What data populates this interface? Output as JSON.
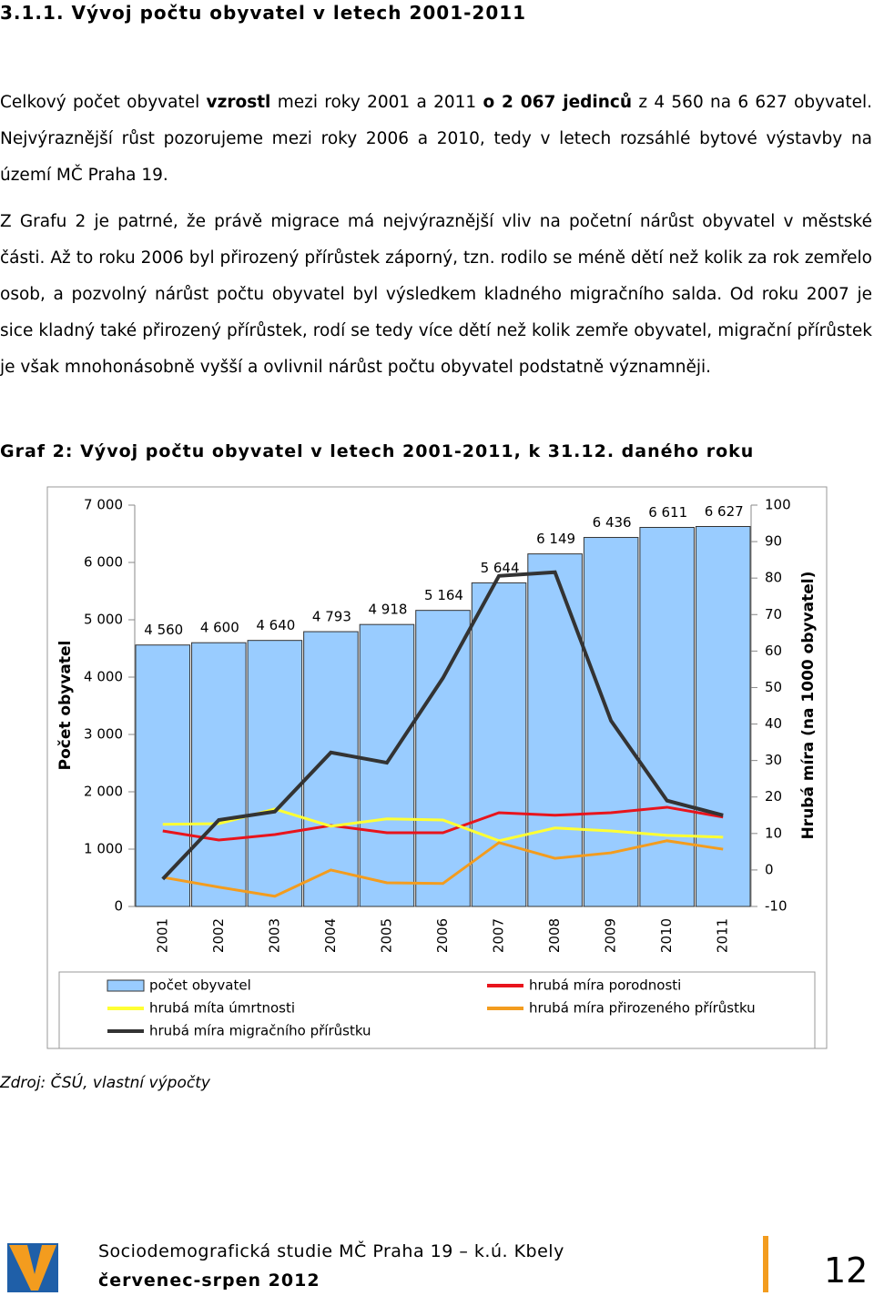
{
  "heading": "3.1.1. Vývoj počtu obyvatel v letech 2001-2011",
  "paragraphs": [
    [
      "Celkový počet obyvatel ",
      {
        "text": "vzrostl",
        "bold": true
      },
      " mezi roky 2001 a 2011 ",
      {
        "text": "o 2 067 jedinců",
        "bold": true
      },
      " z 4 560 na 6 627 obyvatel. Nejvýraznější růst pozorujeme mezi roky 2006 a 2010, tedy v letech rozsáhlé bytové výstavby na území MČ Praha 19."
    ],
    [
      "Z Grafu 2 je patrné, že právě migrace má nejvýraznější vliv na početní nárůst obyvatel v městské části. Až to roku 2006 byl přirozený přírůstek záporný, tzn. rodilo se méně dětí než kolik za rok zemřelo osob, a pozvolný nárůst počtu obyvatel byl výsledkem kladného migračního salda. Od roku 2007 je sice kladný také přirozený přírůstek, rodí se tedy více dětí než kolik zemře obyvatel, migrační přírůstek je však mnohonásobně vyšší a ovlivnil nárůst počtu obyvatel podstatně významněji."
    ]
  ],
  "caption": "Graf 2: Vývoj počtu obyvatel v letech 2001-2011, k 31.12. daného roku",
  "chart_data": {
    "type": "bar",
    "y_label": "Počet obyvatel",
    "y2_label": "Hrubá míra (na 1000 obyvatel)",
    "categories": [
      "2001",
      "2002",
      "2003",
      "2004",
      "2005",
      "2006",
      "2007",
      "2008",
      "2009",
      "2010",
      "2011"
    ],
    "ylim": [
      0,
      7000
    ],
    "yticks": [
      0,
      {
        "value": 1000,
        "label": "1 000"
      },
      {
        "value": 2000,
        "label": "2 000"
      },
      {
        "value": 3000,
        "label": "3 000"
      },
      {
        "value": 4000,
        "label": "4 000"
      },
      {
        "value": 5000,
        "label": "5 000"
      },
      {
        "value": 6000,
        "label": "6 000"
      },
      {
        "value": 7000,
        "label": "7 000"
      }
    ],
    "y2lim": [
      -10,
      100
    ],
    "y2ticks": [
      -10,
      0,
      10,
      20,
      30,
      40,
      50,
      60,
      70,
      80,
      90,
      100
    ],
    "series": [
      {
        "name": "počet obyvatel",
        "type": "bar",
        "color": "#99ccff",
        "values": [
          4560,
          4600,
          4640,
          4793,
          4918,
          5164,
          5644,
          6149,
          6436,
          6611,
          6627
        ],
        "value_labels": [
          "4 560",
          "4 600",
          "4 640",
          "4 793",
          "4 918",
          "5 164",
          "5 644",
          "6 149",
          "6 436",
          "6 611",
          "6 627"
        ]
      },
      {
        "name": "hrubá míra porodnosti",
        "type": "line",
        "axis": "y2",
        "color": "#e8141c",
        "values": [
          10.7,
          8.2,
          9.7,
          12.2,
          10.2,
          10.2,
          15.7,
          15,
          15.7,
          17.2,
          14.5
        ]
      },
      {
        "name": "hrubá míta úmrtnosti",
        "type": "line",
        "axis": "y2",
        "color": "#ffff33",
        "values": [
          12.5,
          12.7,
          16.7,
          12,
          14,
          13.7,
          8,
          11.5,
          10.7,
          9.5,
          9
        ]
      },
      {
        "name": "hrubá míra přirozeného přírůstku",
        "type": "line",
        "axis": "y2",
        "color": "#f39c1e",
        "values": [
          -2,
          -4.7,
          -7.2,
          0,
          -3.5,
          -3.7,
          7.5,
          3.2,
          4.7,
          8,
          5.7
        ]
      },
      {
        "name": "hrubá míra migračního přírůstku",
        "type": "line",
        "axis": "y2",
        "color": "#333333",
        "values": [
          -2.5,
          13.7,
          16,
          32.2,
          29.4,
          52.6,
          80.6,
          81.6,
          40.9,
          19,
          15
        ]
      }
    ]
  },
  "source": "Zdroj: ČSÚ, vlastní výpočty",
  "footer": {
    "study": "Sociodemografická studie MČ Praha 19 – k.ú. Kbely",
    "date": "červenec-srpen 2012",
    "page": "12"
  }
}
